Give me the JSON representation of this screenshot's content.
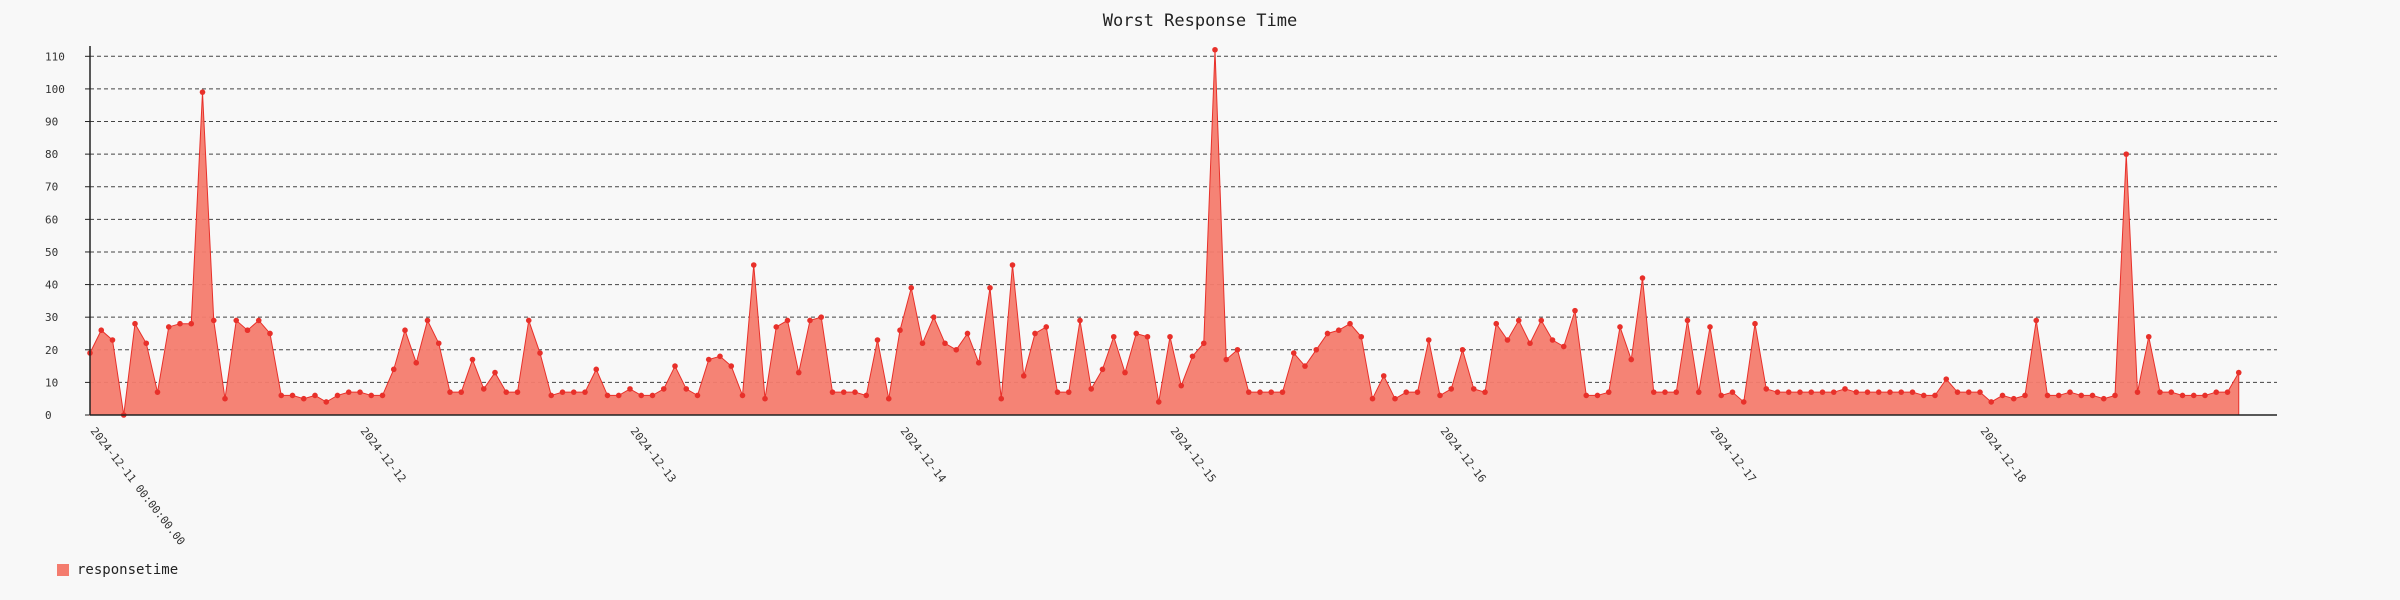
{
  "chart_data": {
    "type": "area",
    "title": "Worst Response Time",
    "xlabel": "",
    "ylabel": "",
    "ylim": [
      0,
      115
    ],
    "y_ticks": [
      0,
      10,
      20,
      30,
      40,
      50,
      60,
      70,
      80,
      90,
      100,
      110
    ],
    "grid": true,
    "legend_position": "bottom-left",
    "color": "#f47c6e",
    "marker_color": "#e8302a",
    "x_start_label": "2024-12-11 00:00:00.00",
    "date_labels": [
      "2024-12-12",
      "2024-12-13",
      "2024-12-14",
      "2024-12-15",
      "2024-12-16",
      "2024-12-17",
      "2024-12-18"
    ],
    "points_per_day": 24,
    "series": [
      {
        "name": "responsetime",
        "values": [
          19,
          26,
          23,
          0,
          28,
          22,
          7,
          27,
          28,
          28,
          99,
          29,
          5,
          29,
          26,
          29,
          25,
          6,
          6,
          5,
          6,
          4,
          6,
          7,
          7,
          6,
          6,
          14,
          26,
          16,
          29,
          22,
          7,
          7,
          17,
          8,
          13,
          7,
          7,
          29,
          19,
          6,
          7,
          7,
          7,
          14,
          6,
          6,
          8,
          6,
          6,
          8,
          15,
          8,
          6,
          17,
          18,
          15,
          6,
          46,
          5,
          27,
          29,
          13,
          29,
          30,
          7,
          7,
          7,
          6,
          23,
          5,
          26,
          39,
          22,
          30,
          22,
          20,
          25,
          16,
          39,
          5,
          46,
          12,
          25,
          27,
          7,
          7,
          29,
          8,
          14,
          24,
          13,
          25,
          24,
          4,
          24,
          9,
          18,
          22,
          112,
          17,
          20,
          7,
          7,
          7,
          7,
          19,
          15,
          20,
          25,
          26,
          28,
          24,
          5,
          12,
          5,
          7,
          7,
          23,
          6,
          8,
          20,
          8,
          7,
          28,
          23,
          29,
          22,
          29,
          23,
          21,
          32,
          6,
          6,
          7,
          27,
          17,
          42,
          7,
          7,
          7,
          29,
          7,
          27,
          6,
          7,
          4,
          28,
          8,
          7,
          7,
          7,
          7,
          7,
          7,
          8,
          7,
          7,
          7,
          7,
          7,
          7,
          6,
          6,
          11,
          7,
          7,
          7,
          4,
          6,
          5,
          6,
          29,
          6,
          6,
          7,
          6,
          6,
          5,
          6,
          80,
          7,
          24,
          7,
          7,
          6,
          6,
          6,
          7,
          7,
          13
        ]
      }
    ]
  },
  "legend": [
    {
      "label": "responsetime",
      "color": "#f47c6e"
    }
  ]
}
